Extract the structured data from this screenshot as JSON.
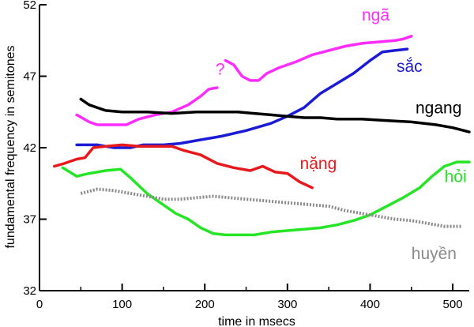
{
  "chart_data": {
    "type": "line",
    "title": "",
    "xlabel": "time in msecs",
    "ylabel": "fundamental frequency in semitones",
    "xlim": [
      0,
      520
    ],
    "ylim": [
      32,
      52
    ],
    "xticks": [
      "0",
      "100",
      "200",
      "300",
      "400",
      "500"
    ],
    "yticks": [
      "32",
      "37",
      "42",
      "47",
      "52"
    ],
    "grid": false,
    "legend": "none",
    "series": [
      {
        "name": "ngã",
        "color": "#ff2cff",
        "style": "solid",
        "segments": [
          [
            [
              45,
              44.3
            ],
            [
              60,
              43.8
            ],
            [
              70,
              43.6
            ],
            [
              90,
              43.6
            ],
            [
              105,
              43.6
            ],
            [
              120,
              44.0
            ],
            [
              140,
              44.3
            ],
            [
              160,
              44.5
            ],
            [
              180,
              45.0
            ],
            [
              195,
              45.6
            ],
            [
              205,
              46.1
            ],
            [
              215,
              46.2
            ]
          ],
          [
            [
              225,
              48.1
            ],
            [
              235,
              47.8
            ],
            [
              245,
              47.0
            ],
            [
              255,
              46.7
            ],
            [
              265,
              46.7
            ],
            [
              275,
              47.2
            ],
            [
              290,
              47.6
            ],
            [
              310,
              48.0
            ],
            [
              330,
              48.5
            ],
            [
              350,
              48.8
            ],
            [
              370,
              49.1
            ],
            [
              390,
              49.3
            ],
            [
              410,
              49.4
            ],
            [
              430,
              49.5
            ],
            [
              440,
              49.6
            ],
            [
              450,
              49.8
            ]
          ]
        ],
        "glyph": "?",
        "glyph_at": [
          213,
          47.1
        ],
        "label": "ngã",
        "label_at": [
          390,
          50.9
        ]
      },
      {
        "name": "sắc",
        "color": "#1b1bd6",
        "style": "solid",
        "segments": [
          [
            [
              45,
              42.2
            ],
            [
              70,
              42.2
            ],
            [
              90,
              42.0
            ],
            [
              110,
              42.0
            ],
            [
              125,
              42.2
            ],
            [
              150,
              42.2
            ],
            [
              170,
              42.3
            ],
            [
              200,
              42.6
            ],
            [
              220,
              42.8
            ],
            [
              250,
              43.2
            ],
            [
              280,
              43.7
            ],
            [
              300,
              44.2
            ],
            [
              320,
              44.8
            ],
            [
              340,
              45.8
            ],
            [
              360,
              46.5
            ],
            [
              380,
              47.2
            ],
            [
              400,
              48.1
            ],
            [
              415,
              48.7
            ],
            [
              430,
              48.8
            ],
            [
              445,
              48.9
            ]
          ]
        ],
        "label": "sắc",
        "label_at": [
          432,
          47.3
        ]
      },
      {
        "name": "ngang",
        "color": "#000000",
        "style": "solid",
        "segments": [
          [
            [
              50,
              45.4
            ],
            [
              60,
              45.0
            ],
            [
              80,
              44.6
            ],
            [
              100,
              44.5
            ],
            [
              130,
              44.5
            ],
            [
              160,
              44.4
            ],
            [
              190,
              44.5
            ],
            [
              220,
              44.5
            ],
            [
              240,
              44.5
            ],
            [
              260,
              44.4
            ],
            [
              280,
              44.3
            ],
            [
              300,
              44.2
            ],
            [
              320,
              44.1
            ],
            [
              340,
              44.1
            ],
            [
              360,
              44.0
            ],
            [
              390,
              44.0
            ],
            [
              420,
              43.9
            ],
            [
              450,
              43.8
            ],
            [
              480,
              43.6
            ],
            [
              500,
              43.4
            ],
            [
              520,
              43.1
            ]
          ]
        ],
        "label": "ngang",
        "label_at": [
          455,
          44.4
        ]
      },
      {
        "name": "nặng",
        "color": "#e8191c",
        "style": "solid",
        "segments": [
          [
            [
              18,
              40.7
            ],
            [
              30,
              40.9
            ],
            [
              45,
              41.2
            ],
            [
              55,
              41.3
            ],
            [
              65,
              42.0
            ],
            [
              80,
              42.1
            ],
            [
              100,
              42.2
            ],
            [
              120,
              42.1
            ],
            [
              140,
              42.1
            ],
            [
              160,
              42.1
            ],
            [
              175,
              41.8
            ],
            [
              195,
              41.5
            ],
            [
              215,
              40.9
            ],
            [
              235,
              40.6
            ],
            [
              255,
              40.4
            ],
            [
              270,
              40.7
            ],
            [
              285,
              40.3
            ],
            [
              300,
              40.2
            ],
            [
              315,
              39.6
            ],
            [
              330,
              39.2
            ]
          ]
        ],
        "label": "nặng",
        "label_at": [
          315,
          40.5
        ]
      },
      {
        "name": "hỏi",
        "color": "#26e526",
        "style": "solid",
        "segments": [
          [
            [
              28,
              40.6
            ],
            [
              45,
              40.0
            ],
            [
              60,
              40.2
            ],
            [
              80,
              40.4
            ],
            [
              98,
              40.5
            ],
            [
              110,
              39.9
            ],
            [
              130,
              38.8
            ],
            [
              150,
              38.0
            ],
            [
              165,
              37.4
            ],
            [
              180,
              37.0
            ],
            [
              195,
              36.4
            ],
            [
              210,
              36.0
            ],
            [
              225,
              35.9
            ],
            [
              240,
              35.9
            ],
            [
              260,
              35.9
            ],
            [
              280,
              36.1
            ],
            [
              300,
              36.2
            ],
            [
              320,
              36.3
            ],
            [
              340,
              36.4
            ],
            [
              360,
              36.6
            ],
            [
              380,
              36.9
            ],
            [
              400,
              37.3
            ],
            [
              420,
              37.9
            ],
            [
              440,
              38.5
            ],
            [
              460,
              39.2
            ],
            [
              475,
              40.0
            ],
            [
              490,
              40.7
            ],
            [
              505,
              41.0
            ],
            [
              520,
              41.0
            ]
          ]
        ],
        "label": "hỏi",
        "label_at": [
          490,
          39.6
        ]
      },
      {
        "name": "huyền",
        "color": "#8a8a8a",
        "style": "dotted",
        "segments": [
          [
            [
              50,
              38.8
            ],
            [
              70,
              39.1
            ],
            [
              90,
              39.0
            ],
            [
              110,
              38.8
            ],
            [
              130,
              38.6
            ],
            [
              150,
              38.4
            ],
            [
              170,
              38.4
            ],
            [
              190,
              38.5
            ],
            [
              210,
              38.6
            ],
            [
              230,
              38.5
            ],
            [
              250,
              38.4
            ],
            [
              270,
              38.3
            ],
            [
              290,
              38.2
            ],
            [
              310,
              38.1
            ],
            [
              330,
              38.0
            ],
            [
              350,
              37.9
            ],
            [
              370,
              37.6
            ],
            [
              390,
              37.4
            ],
            [
              410,
              37.2
            ],
            [
              430,
              37.0
            ],
            [
              450,
              36.9
            ],
            [
              470,
              36.7
            ],
            [
              490,
              36.5
            ],
            [
              510,
              36.5
            ]
          ]
        ],
        "label": "huyền",
        "label_at": [
          450,
          34.2
        ]
      }
    ]
  }
}
